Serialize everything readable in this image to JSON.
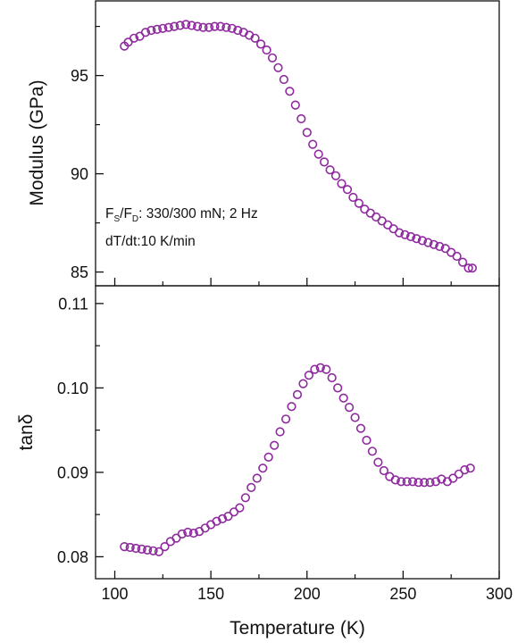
{
  "chart_data": [
    {
      "type": "scatter",
      "title": "",
      "xlabel": "Temperature (K)",
      "ylabel": "Modulus (GPa)",
      "xlim": [
        90,
        300
      ],
      "ylim": [
        84.3,
        98.8
      ],
      "x_ticks": [
        "100",
        "150",
        "200",
        "250",
        "300"
      ],
      "y_ticks": [
        "85",
        "90",
        "95"
      ],
      "y_tick_values": [
        85,
        90,
        95
      ],
      "grid": false,
      "marker": "open-circle",
      "color": "#8e2a9e",
      "annotation": {
        "l1_f": "F",
        "l1_s": "S",
        "l1_sep": "/F",
        "l1_d": "D",
        "l1_rest": ": 330/300 mN; 2 Hz",
        "l2": "dT/dt:10 K/min"
      },
      "series": [
        {
          "x": [
            105,
            107,
            110,
            113,
            116,
            119,
            122,
            125,
            128,
            131,
            134,
            137,
            140,
            143,
            146,
            149,
            152,
            155,
            158,
            161,
            164,
            167,
            170,
            173,
            176,
            179,
            182,
            185,
            188,
            191,
            194,
            197,
            200,
            203,
            206,
            209,
            212,
            215,
            218,
            221,
            224,
            227,
            230,
            233,
            236,
            239,
            242,
            245,
            248,
            251,
            254,
            257,
            260,
            263,
            266,
            269,
            272,
            275,
            278,
            281,
            284,
            286
          ],
          "values": [
            96.5,
            96.7,
            96.9,
            97.0,
            97.2,
            97.3,
            97.35,
            97.4,
            97.45,
            97.5,
            97.55,
            97.6,
            97.55,
            97.5,
            97.45,
            97.45,
            97.5,
            97.5,
            97.45,
            97.4,
            97.3,
            97.2,
            97.05,
            96.9,
            96.6,
            96.3,
            95.9,
            95.4,
            94.8,
            94.2,
            93.5,
            92.8,
            92.1,
            91.5,
            91.0,
            90.6,
            90.2,
            89.9,
            89.5,
            89.2,
            88.8,
            88.5,
            88.2,
            88.0,
            87.8,
            87.6,
            87.4,
            87.2,
            87.0,
            86.9,
            86.8,
            86.7,
            86.6,
            86.5,
            86.4,
            86.3,
            86.2,
            86.0,
            85.8,
            85.5,
            85.2,
            85.2
          ]
        }
      ]
    },
    {
      "type": "scatter",
      "title": "",
      "xlabel": "Temperature (K)",
      "ylabel_prefix": "tan",
      "ylabel_symbol": "δ",
      "xlim": [
        90,
        300
      ],
      "ylim": [
        0.0774,
        0.1121
      ],
      "x_ticks": [
        "100",
        "150",
        "200",
        "250",
        "300"
      ],
      "x_tick_values": [
        100,
        150,
        200,
        250,
        300
      ],
      "y_ticks": [
        "0.08",
        "0.09",
        "0.10",
        "0.11"
      ],
      "y_tick_values": [
        0.08,
        0.09,
        0.1,
        0.11
      ],
      "grid": false,
      "marker": "open-circle",
      "color": "#8e2a9e",
      "series": [
        {
          "x": [
            105,
            108,
            111,
            114,
            117,
            120,
            123,
            126,
            129,
            132,
            135,
            138,
            141,
            144,
            147,
            150,
            153,
            156,
            159,
            162,
            165,
            168,
            171,
            174,
            177,
            180,
            183,
            186,
            189,
            192,
            195,
            198,
            201,
            204,
            207,
            210,
            213,
            216,
            219,
            222,
            225,
            228,
            231,
            234,
            237,
            240,
            243,
            246,
            249,
            252,
            255,
            258,
            261,
            264,
            267,
            270,
            273,
            276,
            279,
            282,
            285
          ],
          "values": [
            0.0812,
            0.0811,
            0.081,
            0.0809,
            0.0808,
            0.0807,
            0.0806,
            0.0812,
            0.0818,
            0.0822,
            0.0827,
            0.0829,
            0.0828,
            0.083,
            0.0834,
            0.0838,
            0.0842,
            0.0845,
            0.0848,
            0.0853,
            0.0858,
            0.087,
            0.0882,
            0.0893,
            0.0905,
            0.0918,
            0.0932,
            0.0948,
            0.0963,
            0.0978,
            0.0992,
            0.1005,
            0.1015,
            0.1022,
            0.1024,
            0.1022,
            0.1012,
            0.1,
            0.0988,
            0.0977,
            0.0965,
            0.0952,
            0.0938,
            0.0925,
            0.0912,
            0.0902,
            0.0895,
            0.0891,
            0.0889,
            0.0889,
            0.0889,
            0.0888,
            0.0888,
            0.0888,
            0.0889,
            0.0892,
            0.0889,
            0.0893,
            0.0898,
            0.0903,
            0.0905
          ]
        }
      ]
    }
  ]
}
